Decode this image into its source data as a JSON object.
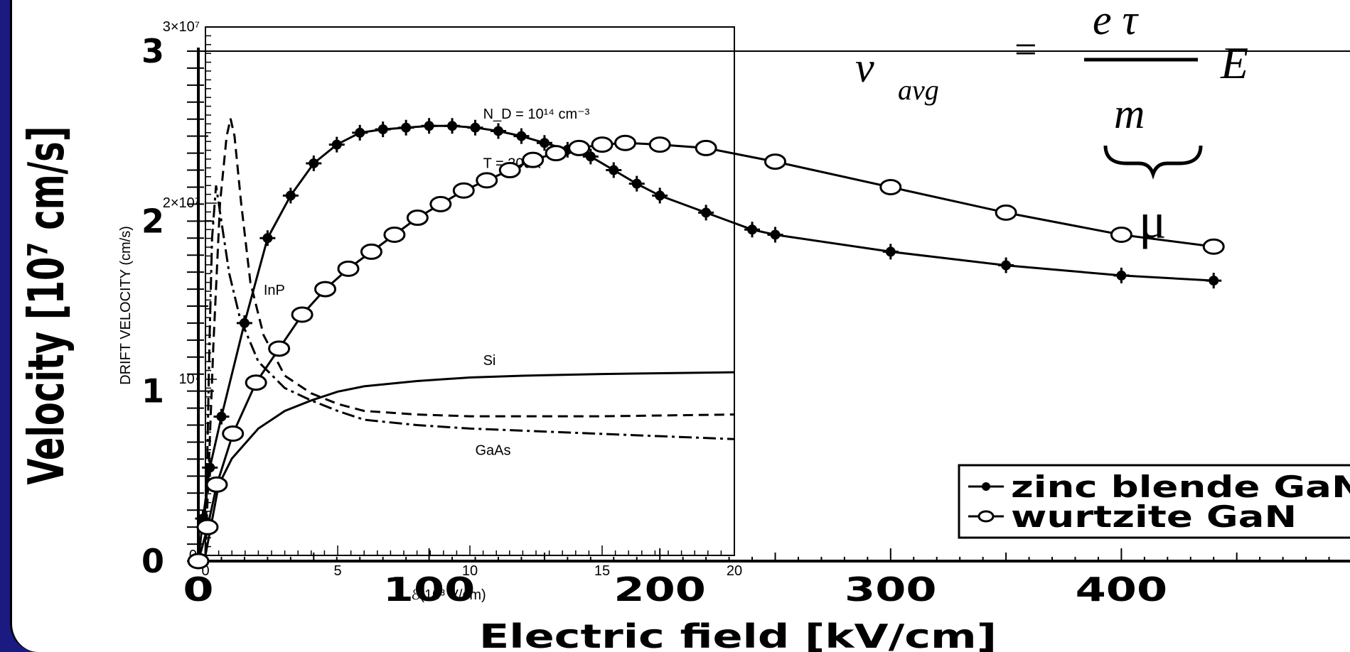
{
  "equation": {
    "v": "v",
    "sub": "avg",
    "equals": "=",
    "numerator": "e τ",
    "denominator": "m",
    "field": "E",
    "mobility": "μ"
  },
  "chart_data": [
    {
      "type": "line",
      "xlabel": "Electric field [kV/cm]",
      "ylabel": "Velocity [10⁷ cm/s]",
      "x_ticks": [
        "0",
        "100",
        "200",
        "300",
        "400"
      ],
      "y_ticks": [
        "0",
        "1",
        "2",
        "3"
      ],
      "xlim": [
        0,
        500
      ],
      "ylim": [
        0,
        3
      ],
      "legend_position": "bottom-right",
      "series": [
        {
          "name": "zinc blende GaN",
          "color": "#000000",
          "marker": "filled-star",
          "x": [
            0,
            2,
            5,
            10,
            20,
            30,
            40,
            50,
            60,
            70,
            80,
            90,
            100,
            110,
            120,
            130,
            140,
            150,
            160,
            170,
            180,
            190,
            200,
            220,
            240,
            250,
            300,
            350,
            400,
            440
          ],
          "y": [
            0,
            0.25,
            0.55,
            0.85,
            1.4,
            1.9,
            2.15,
            2.34,
            2.45,
            2.52,
            2.54,
            2.55,
            2.56,
            2.56,
            2.55,
            2.53,
            2.5,
            2.46,
            2.42,
            2.38,
            2.3,
            2.22,
            2.15,
            2.05,
            1.95,
            1.92,
            1.82,
            1.74,
            1.68,
            1.65
          ]
        },
        {
          "name": "wurtzite GaN",
          "color": "#000000",
          "marker": "open-circle",
          "x": [
            0,
            4,
            8,
            15,
            25,
            35,
            45,
            55,
            65,
            75,
            85,
            95,
            105,
            115,
            125,
            135,
            145,
            155,
            165,
            175,
            185,
            200,
            220,
            250,
            300,
            350,
            400,
            440
          ],
          "y": [
            0,
            0.2,
            0.45,
            0.75,
            1.05,
            1.25,
            1.45,
            1.6,
            1.72,
            1.82,
            1.92,
            2.02,
            2.1,
            2.18,
            2.24,
            2.3,
            2.36,
            2.4,
            2.43,
            2.45,
            2.46,
            2.45,
            2.43,
            2.35,
            2.2,
            2.05,
            1.92,
            1.85
          ]
        }
      ]
    },
    {
      "type": "line",
      "ylabel": "DRIFT VELOCITY (cm/s)",
      "xlabel": "ℰ(10³ V/cm)",
      "x_ticks": [
        "0",
        "5",
        "10",
        "15",
        "20"
      ],
      "y_ticks": [
        "0",
        "10⁷",
        "2×10⁷",
        "3×10⁷"
      ],
      "xlim": [
        0,
        20
      ],
      "ylim": [
        0,
        3
      ],
      "annotations": [
        "N_D = 10¹⁴ cm⁻³",
        "T = 300K",
        "InP",
        "Si",
        "GaAs"
      ],
      "series": [
        {
          "name": "Si",
          "style": "solid",
          "x": [
            0,
            0.5,
            1,
            2,
            3,
            4,
            5,
            6,
            8,
            10,
            12,
            15,
            20
          ],
          "y": [
            0,
            0.4,
            0.55,
            0.72,
            0.82,
            0.88,
            0.93,
            0.96,
            0.99,
            1.01,
            1.02,
            1.03,
            1.04
          ]
        },
        {
          "name": "GaAs",
          "style": "dash-dot",
          "x": [
            0,
            0.15,
            0.25,
            0.4,
            0.6,
            0.9,
            1.3,
            2,
            3,
            4,
            5,
            6,
            8,
            10,
            15,
            20
          ],
          "y": [
            0,
            1.2,
            1.8,
            2.1,
            1.9,
            1.6,
            1.35,
            1.1,
            0.95,
            0.88,
            0.82,
            0.77,
            0.74,
            0.72,
            0.69,
            0.66
          ]
        },
        {
          "name": "InP",
          "style": "dashed",
          "x": [
            0,
            0.3,
            0.55,
            0.8,
            0.95,
            1.1,
            1.35,
            1.7,
            2.2,
            3,
            4,
            5,
            6,
            8,
            10,
            15,
            20
          ],
          "y": [
            0,
            1.2,
            2.0,
            2.38,
            2.48,
            2.38,
            2.0,
            1.55,
            1.25,
            1.02,
            0.92,
            0.86,
            0.82,
            0.8,
            0.79,
            0.79,
            0.8
          ]
        }
      ]
    }
  ]
}
